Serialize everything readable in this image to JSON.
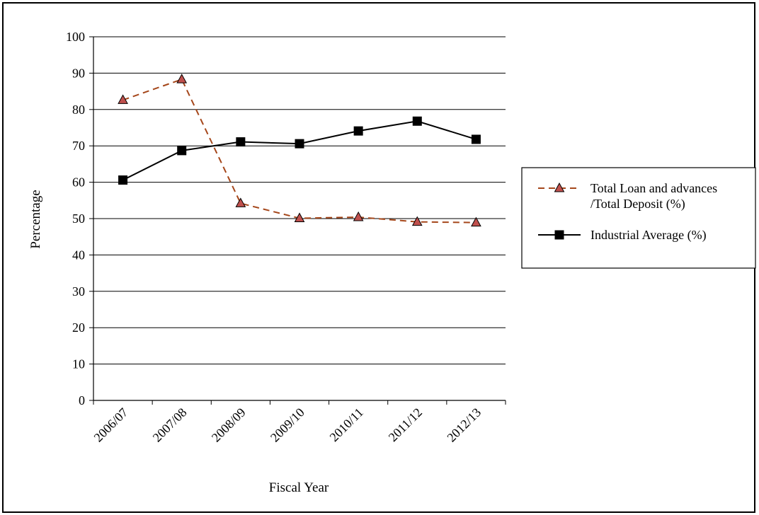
{
  "chart_data": {
    "type": "line",
    "title": "",
    "xlabel": "Fiscal Year",
    "ylabel": "Percentage",
    "ylim": [
      0,
      100
    ],
    "ytick_step": 10,
    "grid": "horizontal",
    "legend_position": "right",
    "categories": [
      "2006/07",
      "2007/08",
      "2008/09",
      "2009/10",
      "2010/11",
      "2011/12",
      "2012/13"
    ],
    "series": [
      {
        "name": "Total Loan and advances /Total Deposit (%)",
        "name_lines": [
          "Total Loan and advances",
          "/Total Deposit (%)"
        ],
        "values": [
          82.6,
          88.3,
          54.2,
          50.1,
          50.4,
          49.1,
          48.9
        ],
        "color": "#a5471b",
        "line_style": "dashed",
        "marker": "triangle",
        "marker_color": "#c0504d"
      },
      {
        "name": "Industrial Average (%)",
        "name_lines": [
          "Industrial Average (%)"
        ],
        "values": [
          60.6,
          68.7,
          71.1,
          70.6,
          74.1,
          76.8,
          71.8
        ],
        "color": "#000000",
        "line_style": "solid",
        "marker": "square",
        "marker_color": "#000000"
      }
    ]
  }
}
